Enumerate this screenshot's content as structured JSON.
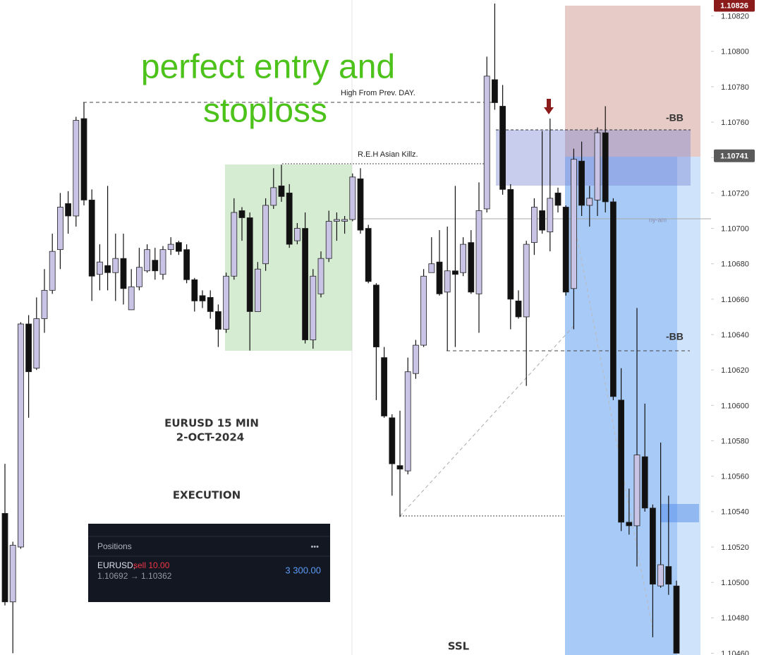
{
  "chart_data": {
    "type": "candlestick",
    "up_color": "#c9c3e6",
    "down_color": "#111111",
    "wick_color": "#111111",
    "open": [
      1.10539,
      1.10489,
      1.1052,
      1.10646,
      1.10621,
      1.10649,
      1.10665,
      1.10688,
      1.10714,
      1.10707,
      1.10762,
      1.10716,
      1.10674,
      1.10679,
      1.10675,
      1.10683,
      1.10654,
      1.10667,
      1.10676,
      1.10682,
      1.10674,
      1.10688,
      1.10692,
      1.10688,
      1.10671,
      1.10662,
      1.10661,
      1.10653,
      1.10643,
      1.10673,
      1.1071,
      1.10706,
      1.10653,
      1.1068,
      1.10713,
      1.10724,
      1.1072,
      1.10693,
      1.107,
      1.10637,
      1.10663,
      1.10683,
      1.10704,
      1.10704,
      1.10705,
      1.10728,
      1.107,
      1.10668,
      1.10627,
      1.10593,
      1.10566,
      1.10563,
      1.10618,
      1.10634,
      1.10675,
      1.10681,
      1.10664,
      1.10676,
      1.10675,
      1.10692,
      1.10663,
      1.10711,
      1.10784,
      1.10769,
      1.10722,
      1.10659,
      1.1065,
      1.10692,
      1.1071,
      1.10698,
      1.1072,
      1.10712,
      1.10666,
      1.10738,
      1.10713,
      1.10716,
      1.10754,
      1.10715,
      1.10603,
      1.10534,
      1.10532,
      1.10571,
      1.10542,
      1.10498,
      1.10509,
      1.10498
    ],
    "high": [
      1.10567,
      1.10523,
      1.10647,
      1.10651,
      1.10661,
      1.10677,
      1.10697,
      1.1072,
      1.10721,
      1.10763,
      1.10771,
      1.10722,
      1.10691,
      1.10724,
      1.10697,
      1.10697,
      1.10677,
      1.10689,
      1.10691,
      1.10689,
      1.1069,
      1.10695,
      1.10693,
      1.10691,
      1.10672,
      1.10665,
      1.10665,
      1.10657,
      1.10675,
      1.10717,
      1.10712,
      1.10709,
      1.10681,
      1.10717,
      1.10734,
      1.10736,
      1.10725,
      1.10703,
      1.10709,
      1.10677,
      1.10687,
      1.1071,
      1.10709,
      1.10707,
      1.10731,
      1.10734,
      1.10702,
      1.10669,
      1.10633,
      1.10595,
      1.10597,
      1.10627,
      1.10637,
      1.10677,
      1.10695,
      1.10699,
      1.10701,
      1.10724,
      1.10695,
      1.10699,
      1.10726,
      1.10797,
      1.10827,
      1.10781,
      1.10725,
      1.10665,
      1.10693,
      1.10717,
      1.10755,
      1.10762,
      1.10723,
      1.10713,
      1.10745,
      1.10749,
      1.10724,
      1.10757,
      1.10769,
      1.10717,
      1.10621,
      1.10553,
      1.10655,
      1.10601,
      1.10544,
      1.10579,
      1.10549,
      1.10501
    ],
    "low": [
      1.10487,
      1.1046,
      1.10519,
      1.10593,
      1.1062,
      1.10641,
      1.10663,
      1.10677,
      1.10697,
      1.10701,
      1.10713,
      1.10659,
      1.10665,
      1.10665,
      1.10659,
      1.10657,
      1.10654,
      1.10665,
      1.10675,
      1.10671,
      1.10671,
      1.10685,
      1.10685,
      1.10669,
      1.10653,
      1.10655,
      1.10649,
      1.10633,
      1.10641,
      1.10671,
      1.10693,
      1.10631,
      1.10653,
      1.10676,
      1.10711,
      1.10715,
      1.10689,
      1.10691,
      1.10635,
      1.10632,
      1.10661,
      1.10681,
      1.10693,
      1.10697,
      1.10704,
      1.10697,
      1.10669,
      1.10603,
      1.10593,
      1.10549,
      1.10537,
      1.10561,
      1.10615,
      1.10633,
      1.10675,
      1.10662,
      1.10631,
      1.10633,
      1.10673,
      1.10663,
      1.10641,
      1.10709,
      1.10767,
      1.10719,
      1.10643,
      1.10649,
      1.10611,
      1.10685,
      1.10697,
      1.10687,
      1.10709,
      1.10662,
      1.10643,
      1.10707,
      1.10701,
      1.10707,
      1.10709,
      1.10603,
      1.10529,
      1.10527,
      1.10509,
      1.1054,
      1.10469,
      1.10497,
      1.10493,
      1.1046
    ],
    "close": [
      1.10489,
      1.10521,
      1.10646,
      1.10619,
      1.10649,
      1.10665,
      1.10687,
      1.10712,
      1.10707,
      1.10761,
      1.10716,
      1.10673,
      1.10681,
      1.10675,
      1.10683,
      1.10666,
      1.10667,
      1.10678,
      1.10688,
      1.10676,
      1.10688,
      1.10691,
      1.10687,
      1.10671,
      1.10659,
      1.10659,
      1.10653,
      1.10643,
      1.10673,
      1.10709,
      1.10706,
      1.10653,
      1.10677,
      1.10713,
      1.10723,
      1.10718,
      1.10691,
      1.107,
      1.10637,
      1.10673,
      1.10683,
      1.10704,
      1.10705,
      1.10705,
      1.10729,
      1.10699,
      1.1067,
      1.10633,
      1.10594,
      1.10567,
      1.10564,
      1.10619,
      1.10634,
      1.10673,
      1.1068,
      1.10663,
      1.10676,
      1.10674,
      1.10691,
      1.10664,
      1.1071,
      1.10786,
      1.10771,
      1.10722,
      1.1066,
      1.1065,
      1.10691,
      1.10712,
      1.10699,
      1.10717,
      1.10713,
      1.10664,
      1.10739,
      1.10713,
      1.10717,
      1.10754,
      1.10715,
      1.10605,
      1.10534,
      1.10532,
      1.10572,
      1.10542,
      1.10499,
      1.1051,
      1.10499,
      1.1046
    ],
    "ylim": [
      1.10459,
      1.10829
    ],
    "yticks": [
      {
        "value": 1.1082,
        "label": "1.10820"
      },
      {
        "value": 1.108,
        "label": "1.10800"
      },
      {
        "value": 1.1078,
        "label": "1.10780"
      },
      {
        "value": 1.1076,
        "label": "1.10760"
      },
      {
        "value": 1.1074,
        "label": "1.10740"
      },
      {
        "value": 1.1072,
        "label": "1.10720"
      },
      {
        "value": 1.107,
        "label": "1.10700"
      },
      {
        "value": 1.1068,
        "label": "1.10680"
      },
      {
        "value": 1.1066,
        "label": "1.10660"
      },
      {
        "value": 1.1064,
        "label": "1.10640"
      },
      {
        "value": 1.1062,
        "label": "1.10620"
      },
      {
        "value": 1.106,
        "label": "1.10600"
      },
      {
        "value": 1.1058,
        "label": "1.10580"
      },
      {
        "value": 1.1056,
        "label": "1.10560"
      },
      {
        "value": 1.1054,
        "label": "1.10540"
      },
      {
        "value": 1.1052,
        "label": "1.10520"
      },
      {
        "value": 1.105,
        "label": "1.10500"
      },
      {
        "value": 1.1048,
        "label": "1.10480"
      },
      {
        "value": 1.1046,
        "label": "1.10460"
      }
    ],
    "price_markers": [
      {
        "value": 1.10826,
        "label": "1.10826",
        "color": "#8b1a1a"
      },
      {
        "value": 1.10741,
        "label": "1.10741",
        "color": "#5a5a5a"
      }
    ],
    "annotations": {
      "headline": [
        "perfect entry and",
        "stoploss"
      ],
      "prev_day_high": "High From Prev. DAY.",
      "asian": "R.E.H  Asian Killz.",
      "bb_top": "-BB",
      "bb_bottom": "-BB",
      "session": "ny-am",
      "pair": "EURUSD 15 MIN",
      "date": "2-OCT-2024",
      "execution": "EXECUTION",
      "ssl": "SSL"
    }
  },
  "positions_panel": {
    "title": "Positions",
    "menu": "•••",
    "symbol": "EURUSD,",
    "side": "sell 10.00",
    "prices": "1.10692 → 1.10362",
    "profit": "3 300.00"
  }
}
